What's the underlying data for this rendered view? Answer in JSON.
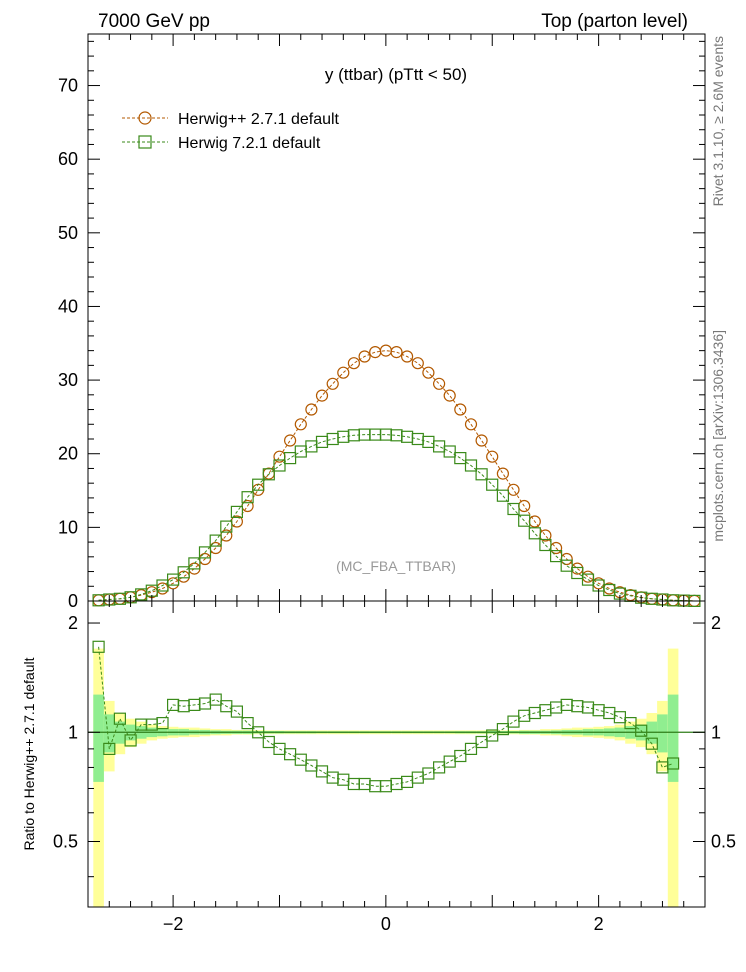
{
  "header": {
    "left": "7000 GeV pp",
    "right": "Top (parton level)"
  },
  "side_text": {
    "rivet": "Rivet 3.1.10, ≥ 2.6M events",
    "mcplots": "mcplots.cern.ch [arXiv:1306.3436]"
  },
  "chart_data": [
    {
      "type": "line",
      "panel": "main",
      "title": "y (ttbar) (pTtt < 50)",
      "annotation": "(MC_FBA_TTBAR)",
      "xlim": [
        -2.8,
        3.0
      ],
      "ylim": [
        0,
        77
      ],
      "yticks": [
        0,
        10,
        20,
        30,
        40,
        50,
        60,
        70
      ],
      "legend_position": "top-left",
      "x": [
        -2.7,
        -2.6,
        -2.5,
        -2.4,
        -2.3,
        -2.2,
        -2.1,
        -2.0,
        -1.9,
        -1.8,
        -1.7,
        -1.6,
        -1.5,
        -1.4,
        -1.3,
        -1.2,
        -1.1,
        -1.0,
        -0.9,
        -0.8,
        -0.7,
        -0.6,
        -0.5,
        -0.4,
        -0.3,
        -0.2,
        -0.1,
        0.0,
        0.1,
        0.2,
        0.3,
        0.4,
        0.5,
        0.6,
        0.7,
        0.8,
        0.9,
        1.0,
        1.1,
        1.2,
        1.3,
        1.4,
        1.5,
        1.6,
        1.7,
        1.8,
        1.9,
        2.0,
        2.1,
        2.2,
        2.3,
        2.4,
        2.5,
        2.6,
        2.7,
        2.8,
        2.9
      ],
      "series": [
        {
          "name": "Herwig++ 2.7.1 default",
          "color": "#b35900",
          "marker": "circle",
          "values": [
            0.1,
            0.2,
            0.3,
            0.5,
            0.8,
            1.2,
            1.7,
            2.4,
            3.3,
            4.4,
            5.7,
            7.2,
            8.9,
            10.8,
            12.9,
            15.1,
            17.3,
            19.6,
            21.8,
            24.0,
            26.0,
            27.9,
            29.5,
            31.0,
            32.3,
            33.2,
            33.8,
            34.0,
            33.8,
            33.2,
            32.3,
            31.0,
            29.5,
            27.9,
            26.0,
            24.0,
            21.8,
            19.6,
            17.3,
            15.1,
            12.9,
            10.8,
            8.9,
            7.2,
            5.7,
            4.4,
            3.3,
            2.4,
            1.7,
            1.2,
            0.8,
            0.5,
            0.3,
            0.2,
            0.1,
            0.05,
            0.02
          ]
        },
        {
          "name": "Herwig 7.2.1 default",
          "color": "#3a8a1a",
          "marker": "square",
          "values": [
            0.1,
            0.2,
            0.3,
            0.5,
            0.9,
            1.4,
            2.1,
            2.9,
            3.9,
            5.1,
            6.6,
            8.2,
            10.1,
            12.1,
            14.1,
            15.8,
            17.2,
            18.4,
            19.4,
            20.3,
            21.0,
            21.6,
            22.0,
            22.3,
            22.5,
            22.6,
            22.6,
            22.6,
            22.5,
            22.3,
            22.0,
            21.6,
            21.0,
            20.3,
            19.4,
            18.4,
            17.2,
            15.8,
            14.3,
            12.5,
            10.9,
            9.2,
            7.6,
            6.1,
            4.8,
            3.8,
            2.9,
            2.1,
            1.5,
            1.0,
            0.7,
            0.45,
            0.3,
            0.2,
            0.1,
            0.05,
            0.02
          ]
        }
      ]
    },
    {
      "type": "line",
      "panel": "ratio",
      "ylabel": "Ratio to Herwig++ 2.7.1 default",
      "xlim": [
        -2.8,
        3.0
      ],
      "ylim": [
        0.33,
        2.3
      ],
      "xticks": [
        -2,
        0,
        2
      ],
      "yticks": [
        0.5,
        1,
        2
      ],
      "x": [
        -2.7,
        -2.6,
        -2.5,
        -2.4,
        -2.3,
        -2.2,
        -2.1,
        -2.0,
        -1.9,
        -1.8,
        -1.7,
        -1.6,
        -1.5,
        -1.4,
        -1.3,
        -1.2,
        -1.1,
        -1.0,
        -0.9,
        -0.8,
        -0.7,
        -0.6,
        -0.5,
        -0.4,
        -0.3,
        -0.2,
        -0.1,
        0.0,
        0.1,
        0.2,
        0.3,
        0.4,
        0.5,
        0.6,
        0.7,
        0.8,
        0.9,
        1.0,
        1.1,
        1.2,
        1.3,
        1.4,
        1.5,
        1.6,
        1.7,
        1.8,
        1.9,
        2.0,
        2.1,
        2.2,
        2.3,
        2.4,
        2.5,
        2.6,
        2.7
      ],
      "reference_band": {
        "green_half_width": [
          0.27,
          0.12,
          0.07,
          0.05,
          0.04,
          0.03,
          0.025,
          0.02,
          0.02,
          0.015,
          0.015,
          0.012,
          0.01,
          0.01,
          0.01,
          0.008,
          0.008,
          0.008,
          0.007,
          0.007,
          0.007,
          0.006,
          0.006,
          0.006,
          0.006,
          0.006,
          0.006,
          0.006,
          0.006,
          0.006,
          0.006,
          0.006,
          0.006,
          0.006,
          0.007,
          0.007,
          0.007,
          0.008,
          0.008,
          0.008,
          0.01,
          0.01,
          0.01,
          0.012,
          0.015,
          0.015,
          0.02,
          0.02,
          0.025,
          0.03,
          0.04,
          0.05,
          0.07,
          0.12,
          0.27
        ],
        "yellow_half_width": [
          0.7,
          0.22,
          0.13,
          0.09,
          0.07,
          0.05,
          0.04,
          0.035,
          0.03,
          0.03,
          0.025,
          0.02,
          0.02,
          0.015,
          0.015,
          0.013,
          0.012,
          0.012,
          0.012,
          0.012,
          0.012,
          0.012,
          0.012,
          0.012,
          0.012,
          0.012,
          0.012,
          0.012,
          0.012,
          0.012,
          0.012,
          0.012,
          0.012,
          0.012,
          0.012,
          0.012,
          0.012,
          0.012,
          0.012,
          0.013,
          0.015,
          0.015,
          0.02,
          0.02,
          0.025,
          0.03,
          0.03,
          0.035,
          0.04,
          0.05,
          0.07,
          0.09,
          0.13,
          0.22,
          0.7
        ]
      },
      "series": [
        {
          "name": "Herwig 7.2.1 default",
          "color": "#3a8a1a",
          "marker": "square",
          "values": [
            1.72,
            0.9,
            1.09,
            0.95,
            1.05,
            1.05,
            1.06,
            1.19,
            1.18,
            1.19,
            1.2,
            1.23,
            1.18,
            1.14,
            1.06,
            1.0,
            0.94,
            0.9,
            0.87,
            0.84,
            0.81,
            0.78,
            0.75,
            0.74,
            0.72,
            0.72,
            0.71,
            0.71,
            0.72,
            0.73,
            0.75,
            0.77,
            0.8,
            0.83,
            0.86,
            0.9,
            0.94,
            0.98,
            1.02,
            1.07,
            1.11,
            1.13,
            1.15,
            1.17,
            1.19,
            1.18,
            1.17,
            1.15,
            1.13,
            1.1,
            1.06,
            1.01,
            0.93,
            0.8,
            0.82
          ]
        }
      ]
    }
  ]
}
